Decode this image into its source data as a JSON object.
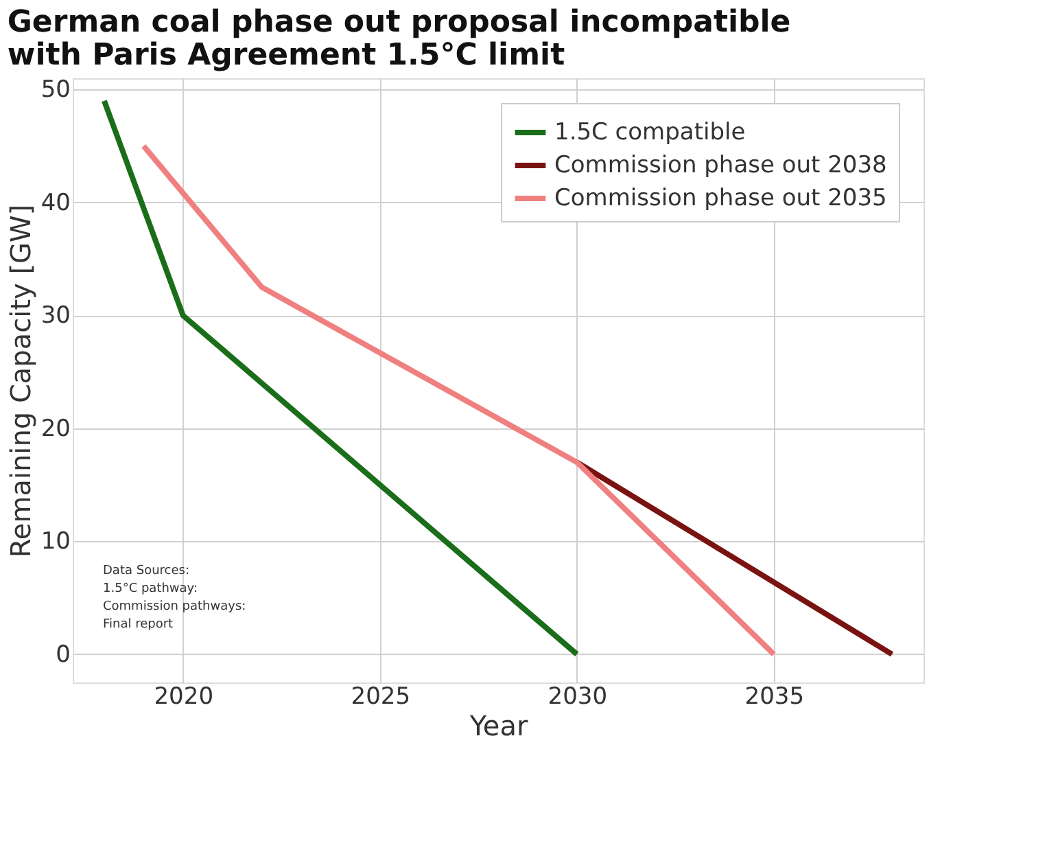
{
  "chart_data": {
    "type": "line",
    "title": [
      "German coal phase out proposal incompatible",
      "with Paris Agreement 1.5°C limit"
    ],
    "xlabel": "Year",
    "ylabel": "Remaining Capacity [GW]",
    "xlim": [
      2017.2,
      2038.8
    ],
    "xticks": [
      2020,
      2025,
      2030,
      2035
    ],
    "ylim": [
      -2.5,
      51
    ],
    "yticks": [
      0,
      10,
      20,
      30,
      40,
      50
    ],
    "grid": true,
    "legend": "top right",
    "line_style": "solid",
    "marker": "none",
    "series": [
      {
        "name": "1.5C compatible",
        "color": "#1a6e1a",
        "x": [
          2018,
          2020,
          2030
        ],
        "values": [
          49,
          30,
          0
        ]
      },
      {
        "name": "Commission phase out 2038",
        "color": "#7a1212",
        "x": [
          2030,
          2038
        ],
        "values": [
          17,
          0
        ]
      },
      {
        "name": "Commission phase out 2035",
        "color": "#f08080",
        "x": [
          2019,
          2022,
          2030,
          2035
        ],
        "values": [
          45,
          32.5,
          17,
          0
        ]
      }
    ],
    "annotations": [
      "Data Sources:",
      "1.5°C pathway:",
      "Commission pathways:",
      "Final report"
    ]
  }
}
